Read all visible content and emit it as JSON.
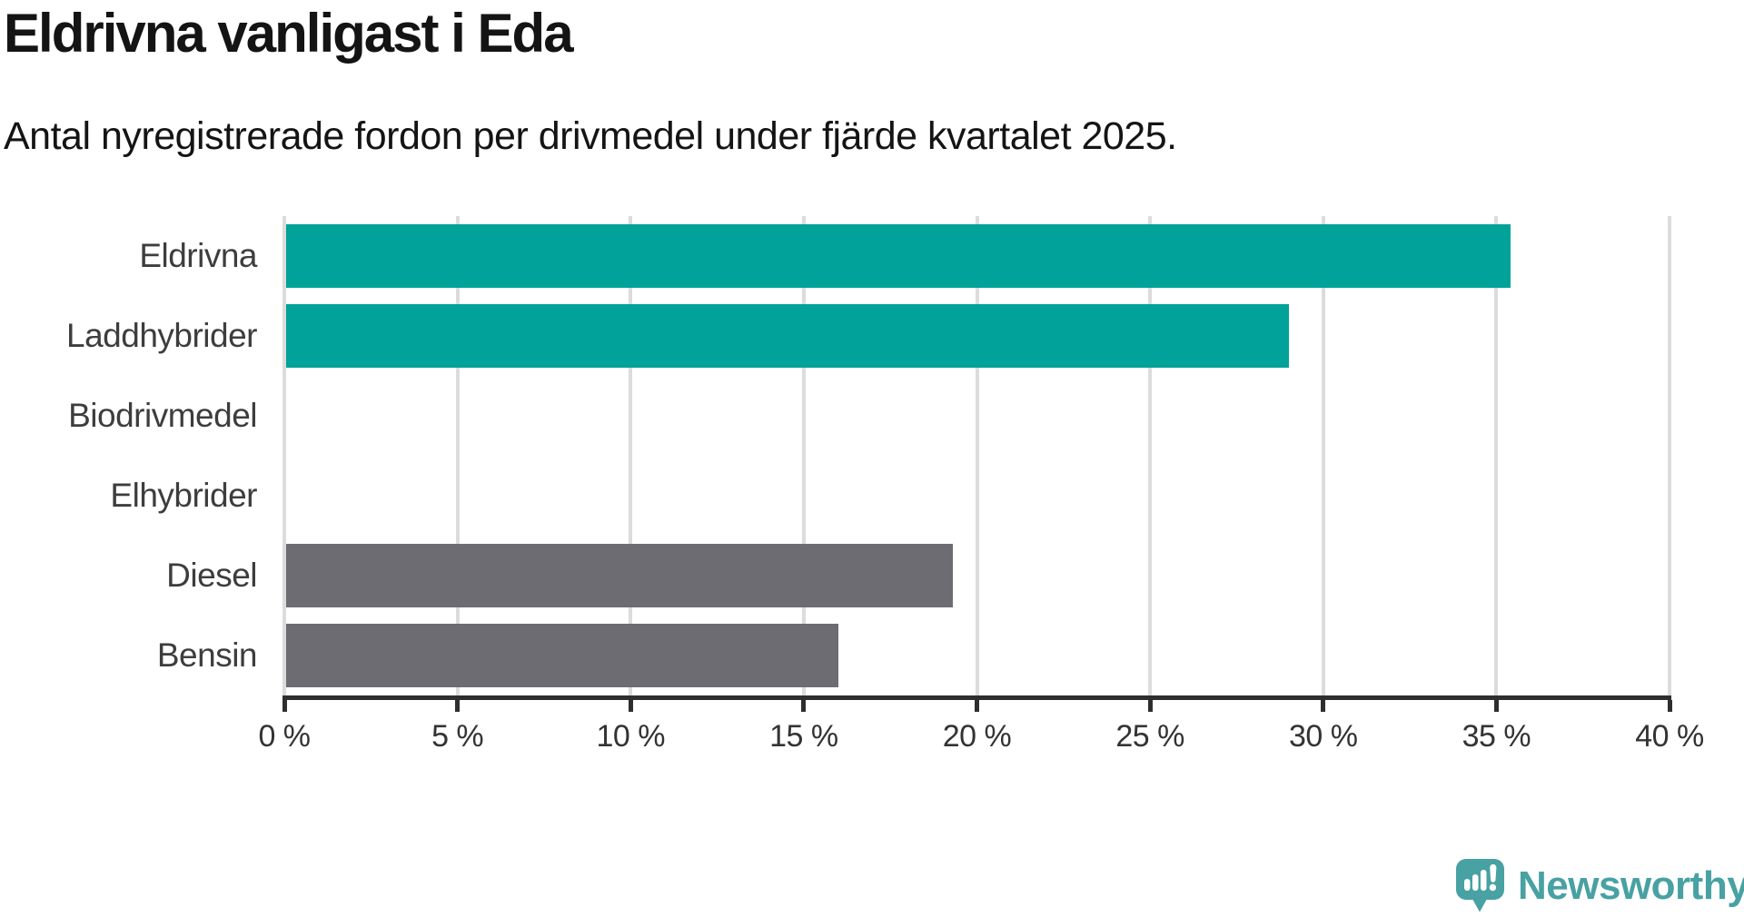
{
  "header": {
    "title": "Eldrivna vanligast i Eda",
    "subtitle": "Antal nyregistrerade fordon per drivmedel under fjärde kvartalet 2025."
  },
  "chart_data": {
    "type": "bar",
    "orientation": "horizontal",
    "title": "Eldrivna vanligast i Eda",
    "subtitle": "Antal nyregistrerade fordon per drivmedel under fjärde kvartalet 2025.",
    "categories": [
      "Eldrivna",
      "Laddhybrider",
      "Biodrivmedel",
      "Elhybrider",
      "Diesel",
      "Bensin"
    ],
    "values": [
      35.4,
      29.0,
      0,
      0,
      19.3,
      16.0
    ],
    "bar_colors": [
      "#00a299",
      "#00a299",
      "#00a299",
      "#00a299",
      "#6d6c72",
      "#6d6c72"
    ],
    "xlabel": "",
    "ylabel": "",
    "xlim": [
      0,
      40
    ],
    "xticks": [
      0,
      5,
      10,
      15,
      20,
      25,
      30,
      35,
      40
    ],
    "xtick_labels": [
      "0 %",
      "5 %",
      "10 %",
      "15 %",
      "20 %",
      "25 %",
      "30 %",
      "35 %",
      "40 %"
    ],
    "grid": true,
    "legend_position": "none"
  },
  "branding": {
    "logo_text": "Newsworthy",
    "logo_icon": "speech-bubble-with-bar-chart-and-exclamation"
  },
  "colors": {
    "bar_teal": "#00a299",
    "bar_gray": "#6d6c72",
    "grid": "#dcdcdc",
    "axis": "#2e2e2e",
    "title_text": "#141414",
    "category_text": "#3d3d3d",
    "tick_text": "#333333",
    "logo_teal": "#48a1a2",
    "background": "#ffffff"
  }
}
